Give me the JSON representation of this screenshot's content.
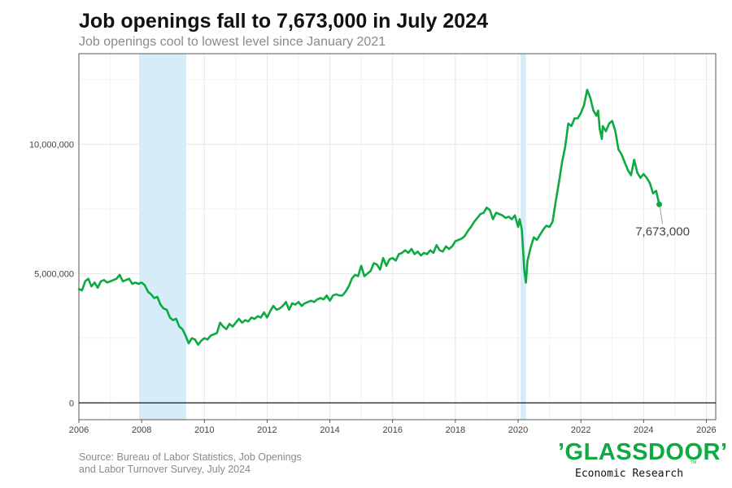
{
  "header": {
    "title": "Job openings fall to 7,673,000 in July 2024",
    "subtitle": "Job openings cool to lowest level since January 2021"
  },
  "footer": {
    "source_line1": "Source: Bureau of Labor Statistics, Job Openings",
    "source_line2": "and Labor Turnover Survey, July 2024",
    "logo_text": "’GLASSDOOR’",
    "logo_tm": "TM",
    "logo_subtext": "Economic Research"
  },
  "colors": {
    "line": "#0caa41",
    "recession": "#d6ecf9",
    "grid": "#e6e6e6",
    "zero_line": "#000000"
  },
  "chart_data": {
    "type": "line",
    "title": "Job openings fall to 7,673,000 in July 2024",
    "subtitle": "Job openings cool to lowest level since January 2021",
    "xlabel": "",
    "ylabel": "",
    "xlim": [
      2006,
      2026.3
    ],
    "ylim": [
      -650000,
      13500000
    ],
    "x_ticks": [
      2006,
      2008,
      2010,
      2012,
      2014,
      2016,
      2018,
      2020,
      2022,
      2024,
      2026
    ],
    "x_tick_labels": [
      "2006",
      "2008",
      "2010",
      "2012",
      "2014",
      "2016",
      "2018",
      "2020",
      "2022",
      "2024",
      "2026"
    ],
    "y_ticks": [
      0,
      5000000,
      10000000
    ],
    "y_tick_labels": [
      "0",
      "5,000,000",
      "10,000,000"
    ],
    "grid": true,
    "recession_bands": [
      [
        2007.92,
        2009.42
      ],
      [
        2020.08,
        2020.25
      ]
    ],
    "annotation": {
      "x": 2024.5,
      "y": 7673000,
      "text": "7,673,000"
    },
    "series": [
      {
        "points": [
          [
            2006.0,
            4400000
          ],
          [
            2006.1,
            4350000
          ],
          [
            2006.2,
            4700000
          ],
          [
            2006.3,
            4800000
          ],
          [
            2006.4,
            4500000
          ],
          [
            2006.5,
            4650000
          ],
          [
            2006.6,
            4450000
          ],
          [
            2006.7,
            4700000
          ],
          [
            2006.8,
            4750000
          ],
          [
            2006.9,
            4650000
          ],
          [
            2007.0,
            4700000
          ],
          [
            2007.1,
            4750000
          ],
          [
            2007.2,
            4800000
          ],
          [
            2007.3,
            4950000
          ],
          [
            2007.4,
            4700000
          ],
          [
            2007.5,
            4750000
          ],
          [
            2007.6,
            4800000
          ],
          [
            2007.7,
            4600000
          ],
          [
            2007.8,
            4650000
          ],
          [
            2007.9,
            4600000
          ],
          [
            2008.0,
            4650000
          ],
          [
            2008.1,
            4550000
          ],
          [
            2008.2,
            4300000
          ],
          [
            2008.3,
            4200000
          ],
          [
            2008.4,
            4050000
          ],
          [
            2008.5,
            4100000
          ],
          [
            2008.6,
            3800000
          ],
          [
            2008.7,
            3650000
          ],
          [
            2008.8,
            3600000
          ],
          [
            2008.9,
            3300000
          ],
          [
            2009.0,
            3200000
          ],
          [
            2009.1,
            3250000
          ],
          [
            2009.2,
            2950000
          ],
          [
            2009.3,
            2850000
          ],
          [
            2009.4,
            2600000
          ],
          [
            2009.5,
            2300000
          ],
          [
            2009.6,
            2500000
          ],
          [
            2009.7,
            2450000
          ],
          [
            2009.8,
            2250000
          ],
          [
            2009.9,
            2400000
          ],
          [
            2010.0,
            2500000
          ],
          [
            2010.1,
            2450000
          ],
          [
            2010.2,
            2600000
          ],
          [
            2010.3,
            2650000
          ],
          [
            2010.4,
            2700000
          ],
          [
            2010.5,
            3100000
          ],
          [
            2010.6,
            2950000
          ],
          [
            2010.7,
            2850000
          ],
          [
            2010.8,
            3050000
          ],
          [
            2010.9,
            2950000
          ],
          [
            2011.0,
            3100000
          ],
          [
            2011.1,
            3250000
          ],
          [
            2011.2,
            3100000
          ],
          [
            2011.3,
            3200000
          ],
          [
            2011.4,
            3150000
          ],
          [
            2011.5,
            3300000
          ],
          [
            2011.6,
            3250000
          ],
          [
            2011.7,
            3350000
          ],
          [
            2011.8,
            3300000
          ],
          [
            2011.9,
            3500000
          ],
          [
            2012.0,
            3300000
          ],
          [
            2012.1,
            3550000
          ],
          [
            2012.2,
            3750000
          ],
          [
            2012.3,
            3600000
          ],
          [
            2012.4,
            3650000
          ],
          [
            2012.5,
            3750000
          ],
          [
            2012.6,
            3900000
          ],
          [
            2012.7,
            3600000
          ],
          [
            2012.8,
            3850000
          ],
          [
            2012.9,
            3800000
          ],
          [
            2013.0,
            3900000
          ],
          [
            2013.1,
            3750000
          ],
          [
            2013.2,
            3850000
          ],
          [
            2013.3,
            3900000
          ],
          [
            2013.4,
            3950000
          ],
          [
            2013.5,
            3900000
          ],
          [
            2013.6,
            4000000
          ],
          [
            2013.7,
            4050000
          ],
          [
            2013.8,
            4000000
          ],
          [
            2013.9,
            4150000
          ],
          [
            2014.0,
            3950000
          ],
          [
            2014.1,
            4150000
          ],
          [
            2014.2,
            4200000
          ],
          [
            2014.3,
            4150000
          ],
          [
            2014.4,
            4150000
          ],
          [
            2014.5,
            4300000
          ],
          [
            2014.6,
            4500000
          ],
          [
            2014.7,
            4800000
          ],
          [
            2014.8,
            4950000
          ],
          [
            2014.9,
            4900000
          ],
          [
            2015.0,
            5300000
          ],
          [
            2015.1,
            4900000
          ],
          [
            2015.2,
            5000000
          ],
          [
            2015.3,
            5100000
          ],
          [
            2015.4,
            5400000
          ],
          [
            2015.5,
            5350000
          ],
          [
            2015.6,
            5150000
          ],
          [
            2015.7,
            5600000
          ],
          [
            2015.8,
            5300000
          ],
          [
            2015.9,
            5550000
          ],
          [
            2016.0,
            5600000
          ],
          [
            2016.1,
            5500000
          ],
          [
            2016.2,
            5750000
          ],
          [
            2016.3,
            5800000
          ],
          [
            2016.4,
            5900000
          ],
          [
            2016.5,
            5800000
          ],
          [
            2016.6,
            5950000
          ],
          [
            2016.7,
            5750000
          ],
          [
            2016.8,
            5850000
          ],
          [
            2016.9,
            5700000
          ],
          [
            2017.0,
            5800000
          ],
          [
            2017.1,
            5750000
          ],
          [
            2017.2,
            5900000
          ],
          [
            2017.3,
            5800000
          ],
          [
            2017.4,
            6100000
          ],
          [
            2017.5,
            5900000
          ],
          [
            2017.6,
            5850000
          ],
          [
            2017.7,
            6050000
          ],
          [
            2017.8,
            5950000
          ],
          [
            2017.9,
            6050000
          ],
          [
            2018.0,
            6250000
          ],
          [
            2018.1,
            6300000
          ],
          [
            2018.2,
            6350000
          ],
          [
            2018.3,
            6450000
          ],
          [
            2018.4,
            6650000
          ],
          [
            2018.5,
            6800000
          ],
          [
            2018.6,
            7000000
          ],
          [
            2018.7,
            7150000
          ],
          [
            2018.8,
            7300000
          ],
          [
            2018.9,
            7350000
          ],
          [
            2019.0,
            7550000
          ],
          [
            2019.1,
            7450000
          ],
          [
            2019.2,
            7100000
          ],
          [
            2019.3,
            7350000
          ],
          [
            2019.4,
            7300000
          ],
          [
            2019.5,
            7250000
          ],
          [
            2019.6,
            7150000
          ],
          [
            2019.7,
            7200000
          ],
          [
            2019.8,
            7100000
          ],
          [
            2019.9,
            7250000
          ],
          [
            2020.0,
            6800000
          ],
          [
            2020.05,
            7100000
          ],
          [
            2020.12,
            6700000
          ],
          [
            2020.2,
            5100000
          ],
          [
            2020.25,
            4650000
          ],
          [
            2020.3,
            5500000
          ],
          [
            2020.4,
            6000000
          ],
          [
            2020.5,
            6400000
          ],
          [
            2020.6,
            6300000
          ],
          [
            2020.7,
            6500000
          ],
          [
            2020.8,
            6700000
          ],
          [
            2020.9,
            6850000
          ],
          [
            2021.0,
            6800000
          ],
          [
            2021.1,
            7000000
          ],
          [
            2021.2,
            7800000
          ],
          [
            2021.3,
            8500000
          ],
          [
            2021.4,
            9300000
          ],
          [
            2021.5,
            9900000
          ],
          [
            2021.6,
            10800000
          ],
          [
            2021.7,
            10700000
          ],
          [
            2021.8,
            11000000
          ],
          [
            2021.9,
            11000000
          ],
          [
            2022.0,
            11200000
          ],
          [
            2022.1,
            11500000
          ],
          [
            2022.2,
            12100000
          ],
          [
            2022.3,
            11800000
          ],
          [
            2022.4,
            11300000
          ],
          [
            2022.5,
            11100000
          ],
          [
            2022.55,
            11300000
          ],
          [
            2022.6,
            10600000
          ],
          [
            2022.67,
            10200000
          ],
          [
            2022.7,
            10700000
          ],
          [
            2022.8,
            10500000
          ],
          [
            2022.9,
            10800000
          ],
          [
            2023.0,
            10900000
          ],
          [
            2023.1,
            10500000
          ],
          [
            2023.2,
            9800000
          ],
          [
            2023.3,
            9600000
          ],
          [
            2023.4,
            9300000
          ],
          [
            2023.5,
            9000000
          ],
          [
            2023.6,
            8800000
          ],
          [
            2023.7,
            9400000
          ],
          [
            2023.8,
            8900000
          ],
          [
            2023.9,
            8700000
          ],
          [
            2024.0,
            8850000
          ],
          [
            2024.1,
            8700000
          ],
          [
            2024.2,
            8500000
          ],
          [
            2024.3,
            8100000
          ],
          [
            2024.4,
            8200000
          ],
          [
            2024.5,
            7673000
          ]
        ]
      }
    ]
  }
}
